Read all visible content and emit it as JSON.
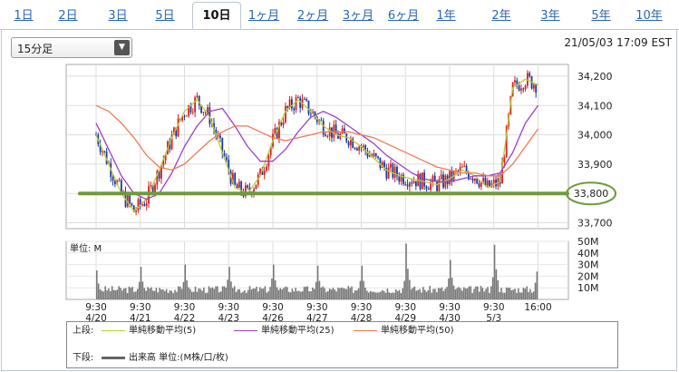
{
  "tabs": [
    "1日",
    "2日",
    "3日",
    "5日",
    "10日",
    "1ヶ月",
    "2ヶ月",
    "3ヶ月",
    "6ヶ月",
    "1年",
    "2年",
    "3年",
    "5年",
    "10年"
  ],
  "active_tab": "10日",
  "interval_select": {
    "value": "15分足"
  },
  "timestamp": "21/05/03 17:09 EST",
  "colors": {
    "price_up": "#d81e1e",
    "price_down": "#1a3a9e",
    "ma5": "#b8cc32",
    "ma25": "#9b3fc8",
    "ma50": "#ee7a55",
    "volume": "#777777",
    "support_line": "#6e9a3c"
  },
  "chart_data": [
    {
      "type": "line",
      "panel": "price",
      "x_ticks": [
        "9:30\n4/20",
        "9:30\n4/21",
        "9:30\n4/22",
        "9:30\n4/23",
        "9:30\n4/26",
        "9:30\n4/27",
        "9:30\n4/28",
        "9:30\n4/29",
        "9:30\n4/30",
        "9:30\n5/3",
        "16:00"
      ],
      "ylim": [
        33680,
        34240
      ],
      "y_ticks": [
        "34,200",
        "34,100",
        "34,000",
        "33,900",
        "33,800",
        "33,700"
      ],
      "y_values": [
        34200,
        34100,
        34000,
        33900,
        33800,
        33700
      ],
      "annotation": {
        "value": 33800,
        "label": "33,800"
      },
      "series": [
        {
          "name": "単純移動平均(5)",
          "values": [
            34000,
            33900,
            33800,
            33740,
            33780,
            33880,
            33990,
            34080,
            34120,
            34060,
            33940,
            33820,
            33800,
            33860,
            33980,
            34080,
            34120,
            34080,
            34030,
            34000,
            33990,
            33960,
            33920,
            33880,
            33860,
            33850,
            33840,
            33830,
            33850,
            33880,
            33860,
            33820,
            33840,
            34160,
            34190,
            34170
          ]
        },
        {
          "name": "単純移動平均(25)",
          "values": [
            34040,
            33950,
            33860,
            33800,
            33780,
            33800,
            33870,
            33960,
            34030,
            34080,
            34090,
            34030,
            33960,
            33910,
            33910,
            33950,
            34010,
            34060,
            34080,
            34060,
            34030,
            34000,
            33970,
            33930,
            33900,
            33870,
            33850,
            33840,
            33840,
            33850,
            33860,
            33860,
            33870,
            33940,
            34040,
            34100
          ]
        },
        {
          "name": "単純移動平均(50)",
          "values": [
            34100,
            34080,
            34040,
            33990,
            33930,
            33890,
            33880,
            33900,
            33940,
            33980,
            34010,
            34030,
            34030,
            34010,
            33990,
            33980,
            33990,
            34000,
            34010,
            34010,
            34010,
            34000,
            33990,
            33970,
            33950,
            33930,
            33910,
            33890,
            33880,
            33870,
            33870,
            33860,
            33860,
            33900,
            33960,
            34020
          ]
        }
      ]
    },
    {
      "type": "bar",
      "panel": "volume",
      "ylabel": "単位: M",
      "ylim": [
        0,
        50
      ],
      "y_ticks": [
        "50M",
        "40M",
        "30M",
        "20M",
        "10M"
      ],
      "y_values": [
        50,
        40,
        30,
        20,
        10
      ],
      "series": [
        {
          "name": "出来高 単位:(M株/口/枚)"
        }
      ],
      "day_open_spikes": [
        25,
        28,
        30,
        28,
        30,
        29,
        29,
        48,
        34,
        47
      ],
      "day_close_spikes": [
        15,
        15,
        17,
        18,
        15,
        16,
        16,
        18,
        19,
        24
      ],
      "typical_intraday_volume": 9
    }
  ],
  "legend": {
    "top_label": "上段:",
    "bottom_label": "下段:",
    "ma5": "単純移動平均(5)",
    "ma25": "単純移動平均(25)",
    "ma50": "単純移動平均(50)",
    "volume": "出来高 単位:(M株/口/枚)"
  }
}
